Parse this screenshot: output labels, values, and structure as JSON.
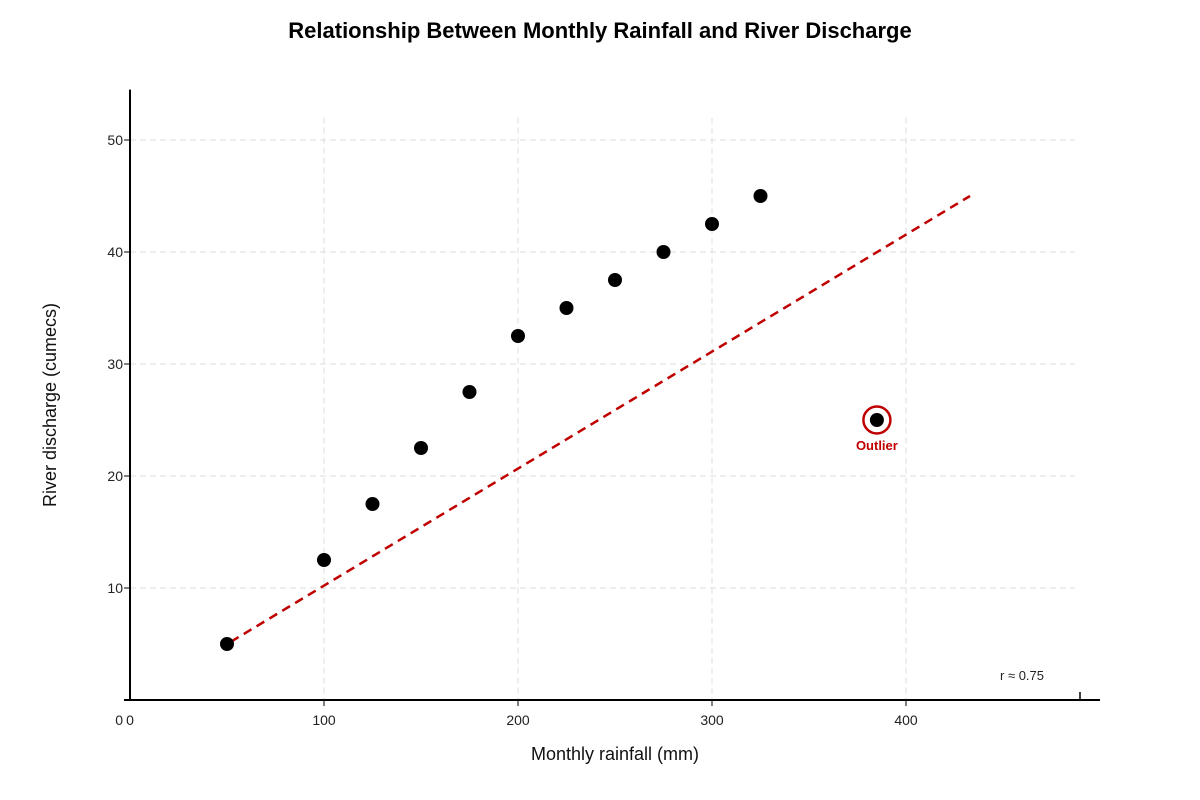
{
  "chart_data": {
    "type": "scatter",
    "title": "Relationship Between Monthly Rainfall and River Discharge",
    "xlabel": "Monthly rainfall (mm)",
    "ylabel": "River discharge (cumecs)",
    "xlim": [
      0,
      490
    ],
    "ylim": [
      0,
      52
    ],
    "x_ticks": [
      0,
      100,
      200,
      300,
      400
    ],
    "x_tick_labels": [
      "0",
      "100",
      "200",
      "300",
      "400"
    ],
    "y_ticks": [
      10,
      20,
      30,
      40,
      50
    ],
    "y_tick_labels": [
      "10",
      "20",
      "30",
      "40",
      "50"
    ],
    "origin_label": "0",
    "grid": true,
    "series": [
      {
        "x": [
          50,
          100,
          125,
          150,
          175,
          200,
          225,
          250,
          275,
          300,
          325
        ],
        "y": [
          5,
          12.5,
          17.5,
          22.5,
          27.5,
          32.5,
          35,
          37.5,
          40,
          42.5,
          45
        ]
      }
    ],
    "outlier": {
      "x": 385,
      "y": 25,
      "label": "Outlier"
    },
    "trend_line": {
      "x": [
        52,
        433
      ],
      "y": [
        5.2,
        45
      ]
    },
    "annotation": "r ≈ 0.75",
    "colors": {
      "points": "#000000",
      "trend": "#c00000",
      "outlier": "#c00000",
      "grid": "#dddddd"
    }
  }
}
